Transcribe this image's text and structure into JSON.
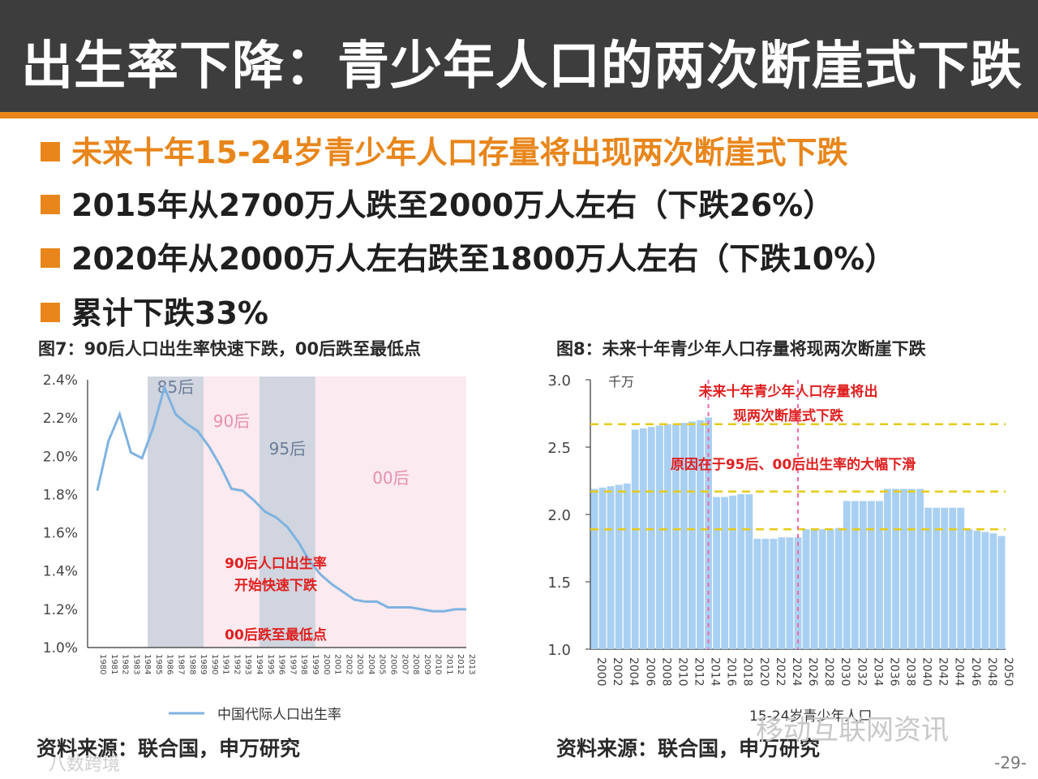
{
  "title": "出生率下降：青少年人口的两次断崖式下跌",
  "bullets": [
    "未来十年15-24岁青少年人口存量将出现两次断崖式下跌",
    "2015年从2700万人跌至2000万人左右（下跌26%）",
    "2020年从2000万人左右跌至1800万人左右（下跌10%）",
    "累计下跌33%"
  ],
  "colors": {
    "accent": "#e8861b",
    "title_bg": "#3d3d3d",
    "line": "#7fb3e0",
    "bar": "#a9d0f2",
    "annotation": "#e02020",
    "dash_yellow": "#e6cc1a",
    "dash_pink": "#f06aa8"
  },
  "fig7": {
    "caption": "图7：90后人口出生率快速下跌，00后跌至最低点",
    "source": "资料来源：联合国，申万研究"
  },
  "fig8": {
    "caption": "图8：未来十年青少年人口存量将现两次断崖下跌",
    "source": "资料来源：联合国，申万研究"
  },
  "page_number": "-29-",
  "watermarks": {
    "right": "移动互联网资讯",
    "left": "八数跨境"
  },
  "chart_data": [
    {
      "type": "line",
      "ylim": [
        1.0,
        2.4
      ],
      "yticks": [
        "1.0%",
        "1.2%",
        "1.4%",
        "1.6%",
        "1.8%",
        "2.0%",
        "2.2%",
        "2.4%"
      ],
      "x": [
        "1980",
        "1981",
        "1982",
        "1983",
        "1984",
        "1985",
        "1986",
        "1987",
        "1988",
        "1989",
        "1990",
        "1991",
        "1992",
        "1993",
        "1994",
        "1995",
        "1996",
        "1997",
        "1998",
        "1999",
        "2000",
        "2001",
        "2002",
        "2003",
        "2004",
        "2005",
        "2006",
        "2007",
        "2008",
        "2009",
        "2010",
        "2011",
        "2012",
        "2013"
      ],
      "series": [
        {
          "name": "中国代际人口出生率",
          "values": [
            1.82,
            2.08,
            2.22,
            2.02,
            1.99,
            2.15,
            2.36,
            2.22,
            2.17,
            2.13,
            2.05,
            1.95,
            1.83,
            1.82,
            1.77,
            1.71,
            1.68,
            1.63,
            1.55,
            1.45,
            1.38,
            1.33,
            1.29,
            1.25,
            1.24,
            1.24,
            1.21,
            1.21,
            1.21,
            1.2,
            1.19,
            1.19,
            1.2,
            1.2
          ]
        }
      ],
      "bands": [
        {
          "label": "85后",
          "from": "1985",
          "to": "1990",
          "color": "#d0d5df"
        },
        {
          "label": "90后",
          "from": "1990",
          "to": "1995",
          "color": "#fbeaef"
        },
        {
          "label": "95后",
          "from": "1995",
          "to": "2000",
          "color": "#d0d5df"
        },
        {
          "label": "00后",
          "from": "2000",
          "to": "2013",
          "color": "#fbeaef"
        }
      ],
      "annotations": [
        "90后人口出生率",
        "开始快速下跌",
        "00后跌至最低点"
      ]
    },
    {
      "type": "bar",
      "ylim": [
        1.0,
        3.0
      ],
      "yticks": [
        "1.0",
        "1.5",
        "2.0",
        "2.5",
        "3.0"
      ],
      "unit": "千万",
      "xtick_labels": [
        "2000",
        "2002",
        "2004",
        "2006",
        "2008",
        "2010",
        "2012",
        "2014",
        "2016",
        "2018",
        "2020",
        "2022",
        "2024",
        "2026",
        "2028",
        "2030",
        "2032",
        "2034",
        "2036",
        "2038",
        "2040",
        "2042",
        "2044",
        "2046",
        "2048",
        "2050"
      ],
      "years": [
        2000,
        2001,
        2002,
        2003,
        2004,
        2005,
        2006,
        2007,
        2008,
        2009,
        2010,
        2011,
        2012,
        2013,
        2014,
        2015,
        2016,
        2017,
        2018,
        2019,
        2020,
        2021,
        2022,
        2023,
        2024,
        2025,
        2026,
        2027,
        2028,
        2029,
        2030,
        2031,
        2032,
        2033,
        2034,
        2035,
        2036,
        2037,
        2038,
        2039,
        2040,
        2041,
        2042,
        2043,
        2044,
        2045,
        2046,
        2047,
        2048,
        2049,
        2050
      ],
      "series": [
        {
          "name": "15-24岁青少年人口",
          "values": [
            2.19,
            2.2,
            2.21,
            2.22,
            2.23,
            2.63,
            2.64,
            2.65,
            2.66,
            2.67,
            2.67,
            2.68,
            2.69,
            2.7,
            2.72,
            2.13,
            2.13,
            2.14,
            2.15,
            2.15,
            1.82,
            1.82,
            1.82,
            1.83,
            1.83,
            1.83,
            1.89,
            1.89,
            1.89,
            1.89,
            1.9,
            2.1,
            2.1,
            2.1,
            2.1,
            2.1,
            2.19,
            2.19,
            2.19,
            2.19,
            2.19,
            2.05,
            2.05,
            2.05,
            2.05,
            2.05,
            1.89,
            1.88,
            1.87,
            1.86,
            1.84
          ]
        }
      ],
      "reference_lines": [
        2.67,
        2.17,
        1.89
      ],
      "annotations": [
        "未来十年青少年人口存量将出",
        "现两次断崖式下跌",
        "原因在于95后、00后出生率的大幅下滑"
      ]
    }
  ]
}
